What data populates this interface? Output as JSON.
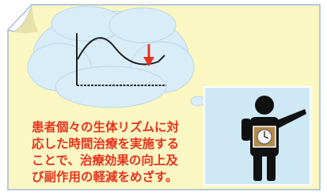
{
  "caption": {
    "lines": [
      "患者個々の生体リズムに対",
      "応した時間治療を実施する",
      "ことで、治療効果の向上及",
      "び副作用の軽減をめざす。"
    ]
  }
}
